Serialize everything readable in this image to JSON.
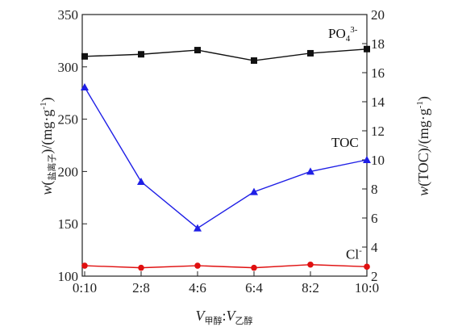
{
  "chart_data": {
    "type": "line",
    "categories": [
      "0:10",
      "2:8",
      "4:6",
      "6:4",
      "8:2",
      "10:0"
    ],
    "xlabel": {
      "v1": "V",
      "sub1": "甲醇",
      "sep": ":",
      "v2": "V",
      "sub2": "乙醇"
    },
    "ylabel_left": {
      "pre": "w(",
      "sub": "盐离子",
      "post": ")/(mg·g",
      "sup": "-1",
      "end": ")"
    },
    "ylabel_right": {
      "pre": "w(TOC)/(mg·g",
      "sup": "-1",
      "end": ")"
    },
    "ylim_left": [
      100,
      350
    ],
    "yticks_left": [
      "100",
      "150",
      "200",
      "250",
      "300",
      "350"
    ],
    "ylim_right": [
      2,
      20
    ],
    "yticks_right": [
      "2",
      "4",
      "6",
      "8",
      "10",
      "12",
      "14",
      "16",
      "18",
      "20"
    ],
    "series": [
      {
        "name": "PO4 3-",
        "label_main": "PO",
        "label_sub": "4",
        "label_sup": "3-",
        "axis": "left",
        "marker": "square",
        "color": "#111111",
        "values": [
          310,
          312,
          316,
          306,
          313,
          317
        ]
      },
      {
        "name": "TOC",
        "label_main": "TOC",
        "label_sub": "",
        "label_sup": "",
        "axis": "right",
        "marker": "triangle",
        "color": "#1f1fe6",
        "values": [
          15.0,
          8.5,
          5.3,
          7.8,
          9.2,
          10.0
        ]
      },
      {
        "name": "Cl-",
        "label_main": "Cl",
        "label_sub": "",
        "label_sup": "-",
        "axis": "left",
        "marker": "circle",
        "color": "#e01010",
        "values": [
          110,
          108,
          110,
          108,
          111,
          109
        ]
      }
    ]
  }
}
